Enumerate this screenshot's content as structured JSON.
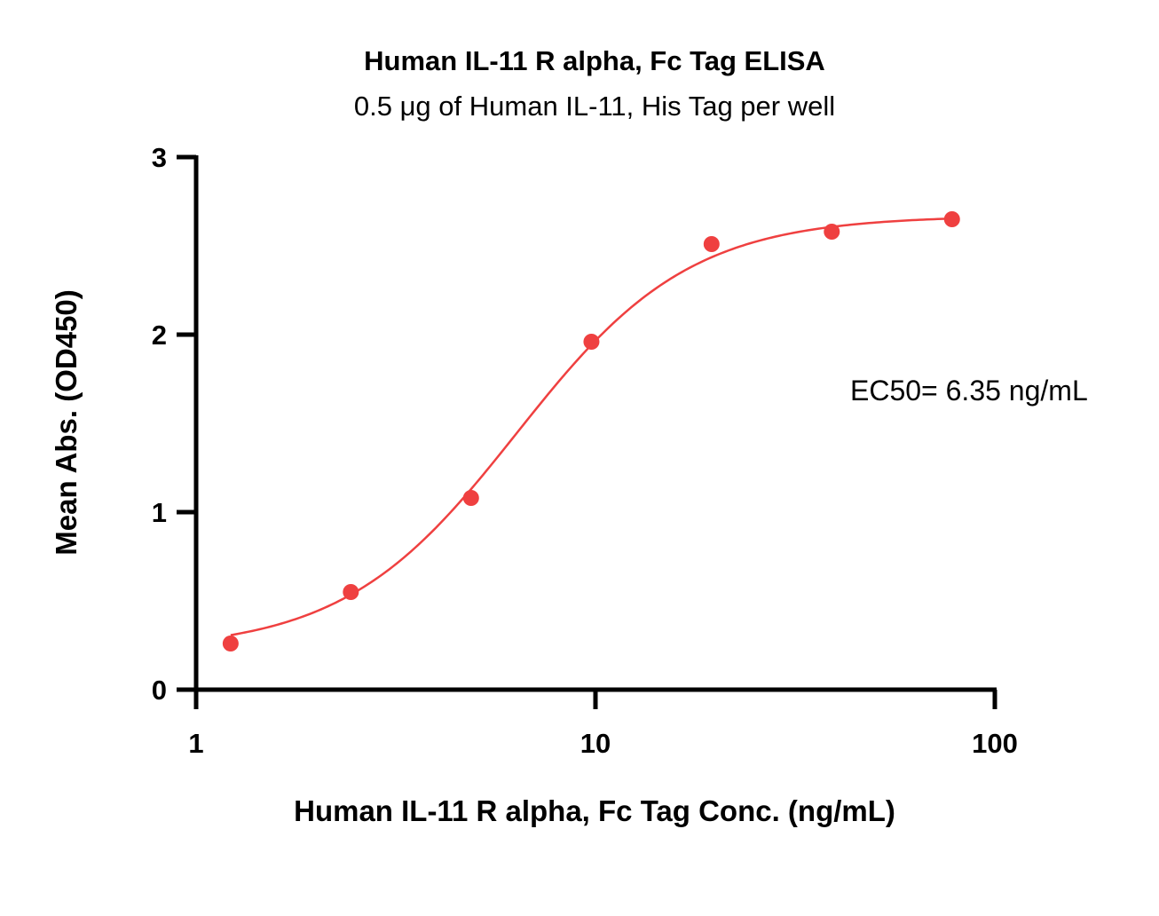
{
  "chart_data": {
    "type": "scatter",
    "title": "Human IL-11 R alpha, Fc Tag ELISA",
    "subtitle": "0.5 μg of Human IL-11, His Tag per well",
    "xlabel": "Human IL-11 R alpha, Fc Tag Conc. (ng/mL)",
    "ylabel": "Mean Abs. (OD450)",
    "x_scale": "log",
    "xlim": [
      1,
      100
    ],
    "ylim": [
      0,
      3
    ],
    "x_ticks": [
      1,
      10,
      100
    ],
    "x_tick_labels": [
      "1",
      "10",
      "100"
    ],
    "y_ticks": [
      0,
      1,
      2,
      3
    ],
    "y_tick_labels": [
      "0",
      "1",
      "2",
      "3"
    ],
    "grid": false,
    "color": "#ef4040",
    "series": [
      {
        "x": [
          1.22,
          2.44,
          4.88,
          9.77,
          19.53,
          39.06,
          78.13
        ],
        "y": [
          0.26,
          0.55,
          1.08,
          1.96,
          2.51,
          2.58,
          2.65
        ]
      }
    ],
    "fit": {
      "model": "4PL",
      "bottom": 0.22,
      "top": 2.67,
      "ec50": 6.35,
      "hill": 2.0
    },
    "annotation": "EC50= 6.35 ng/mL"
  }
}
